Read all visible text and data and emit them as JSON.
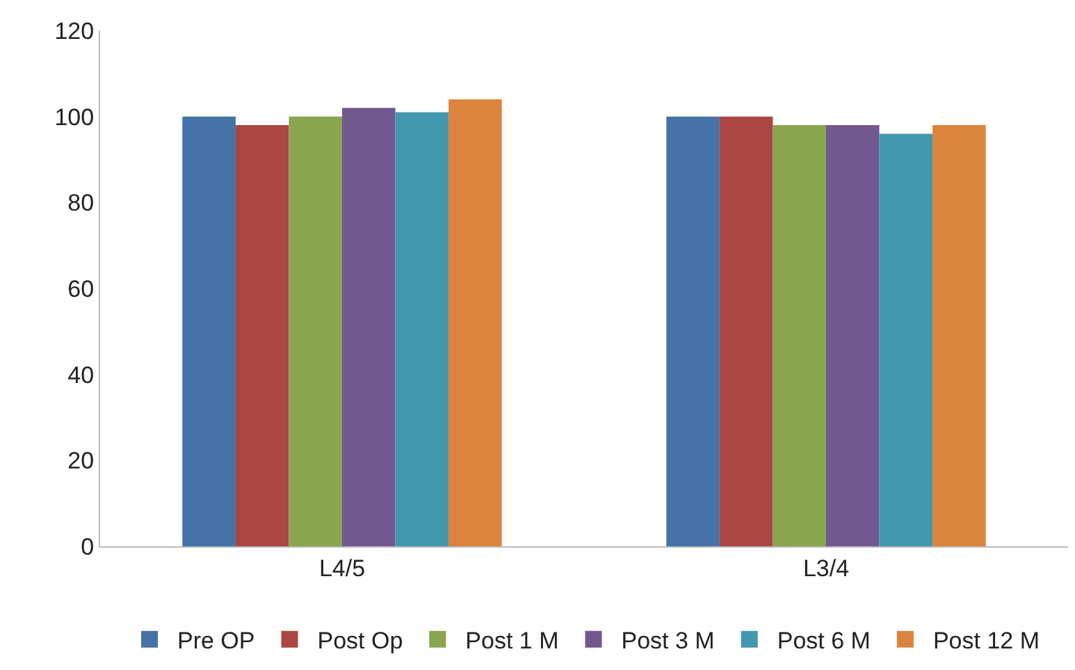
{
  "chart_data": {
    "type": "bar",
    "categories": [
      "L4/5",
      "L3/4"
    ],
    "series": [
      {
        "name": "Pre OP",
        "color": "#4572a7",
        "values": [
          100,
          100
        ]
      },
      {
        "name": "Post Op",
        "color": "#aa4643",
        "values": [
          98,
          100
        ]
      },
      {
        "name": "Post 1 M",
        "color": "#89a54e",
        "values": [
          100,
          98
        ]
      },
      {
        "name": "Post 3 M",
        "color": "#71588f",
        "values": [
          102,
          98
        ]
      },
      {
        "name": "Post 6 M",
        "color": "#4198af",
        "values": [
          101,
          96
        ]
      },
      {
        "name": "Post 12 M",
        "color": "#db843d",
        "values": [
          104,
          98
        ]
      }
    ],
    "ylim": [
      0,
      120
    ],
    "yticks": [
      0,
      20,
      40,
      60,
      80,
      100,
      120
    ],
    "grid": false,
    "legend": "bottom"
  }
}
